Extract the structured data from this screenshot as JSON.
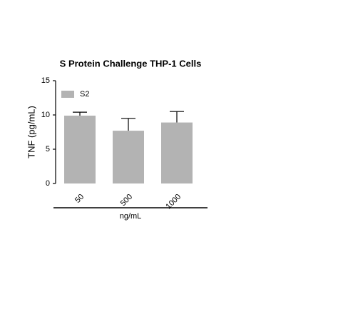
{
  "chart_data": {
    "type": "bar",
    "title": "S Protein Challenge THP-1 Cells",
    "y_label": "TNF (pg/mL)",
    "x_label": "ng/mL",
    "categories": [
      "50",
      "500",
      "1000"
    ],
    "series": [
      {
        "name": "S2",
        "color": "#b3b3b3",
        "values": [
          9.9,
          7.7,
          8.9
        ],
        "errors": [
          0.5,
          1.8,
          1.6
        ]
      }
    ],
    "ylim": [
      0,
      15
    ],
    "yticks": [
      0,
      5,
      10,
      15
    ],
    "grid": false,
    "legend": "upper left"
  }
}
